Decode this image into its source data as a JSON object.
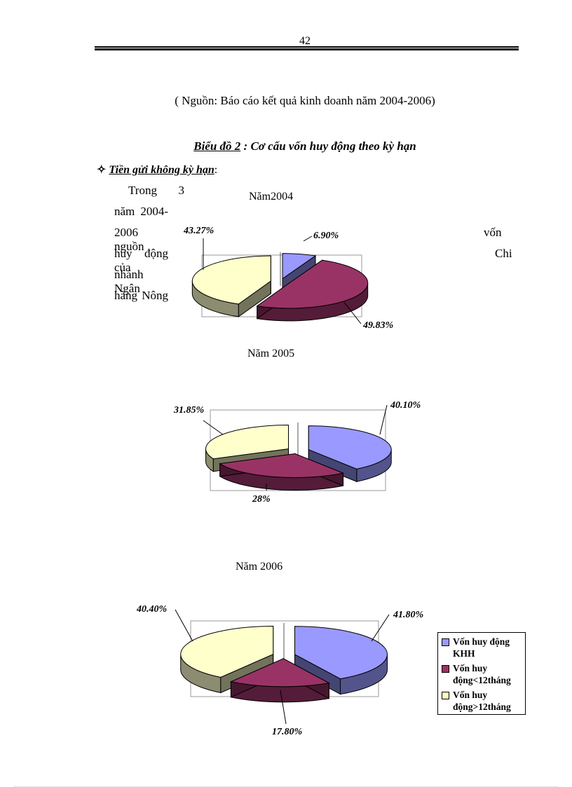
{
  "page_number": "42",
  "source_note": "( Nguồn: Báo cáo kết quả kinh doanh năm 2004-2006)",
  "figure_caption": {
    "label": "Biểu đồ 2",
    "text": ": Cơ cấu vốn huy động theo kỳ hạn"
  },
  "subheading": {
    "icon": "diamond-star-icon",
    "text": "Tiền gửi không kỳ hạn",
    "suffix": ":"
  },
  "paragraph": {
    "left_lines": [
      "Trong 3",
      "năm 2004-",
      "2006 nguồn",
      "huy động của",
      "nhánh Ngân",
      "hàng Nông"
    ],
    "right_lines": [
      "vốn",
      "Chi"
    ]
  },
  "colors": {
    "khh": "#9999ff",
    "lt12": "#993366",
    "gt12": "#ffffcc"
  },
  "legend": {
    "items": [
      {
        "label": "Vốn huy động KHH",
        "color": "#9999ff"
      },
      {
        "label": "Vốn huy động<12tháng",
        "color": "#993366"
      },
      {
        "label": "Vốn huy động>12tháng",
        "color": "#ffffcc"
      }
    ]
  },
  "chart_data": [
    {
      "type": "pie",
      "title": "Năm2004",
      "categories": [
        "Vốn huy động KHH",
        "Vốn huy động<12tháng",
        "Vốn huy động>12tháng"
      ],
      "values": [
        6.9,
        49.83,
        43.27
      ],
      "labels": [
        "6.90%",
        "49.83%",
        "43.27%"
      ]
    },
    {
      "type": "pie",
      "title": "Năm 2005",
      "categories": [
        "Vốn huy động KHH",
        "Vốn huy động<12tháng",
        "Vốn huy động>12tháng"
      ],
      "values": [
        40.1,
        28,
        31.85
      ],
      "labels": [
        "40.10%",
        "28%",
        "31.85%"
      ]
    },
    {
      "type": "pie",
      "title": "Năm 2006",
      "categories": [
        "Vốn huy động KHH",
        "Vốn huy động<12tháng",
        "Vốn huy động>12tháng"
      ],
      "values": [
        41.8,
        17.8,
        40.4
      ],
      "labels": [
        "41.80%",
        "17.80%",
        "40.40%"
      ],
      "legend_position": "right"
    }
  ]
}
